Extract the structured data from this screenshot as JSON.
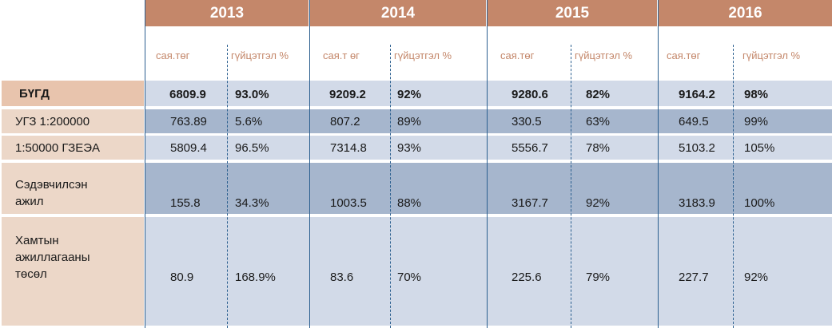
{
  "headers": {
    "years": [
      "2013",
      "2014",
      "2015",
      "2016"
    ],
    "amount_label": "сая.төг",
    "amount_label_2014": "сая.т өг",
    "percent_label": "гүйцэтгэл %"
  },
  "rows": [
    {
      "label": "БҮГД",
      "values": [
        "6809.9",
        "93.0%",
        "9209.2",
        "92%",
        "9280.6",
        "82%",
        "9164.2",
        "98%"
      ]
    },
    {
      "label": "УГЗ 1:200000",
      "values": [
        "763.89",
        "5.6%",
        "807.2",
        "89%",
        "330.5",
        "63%",
        "649.5",
        "99%"
      ]
    },
    {
      "label": "1:50000 ГЗЕЭА",
      "values": [
        "5809.4",
        "96.5%",
        "7314.8",
        "93%",
        "5556.7",
        "78%",
        "5103.2",
        "105%"
      ]
    },
    {
      "label": "Сэдэвчилсэн ажил",
      "values": [
        "155.8",
        "34.3%",
        "1003.5",
        "88%",
        "3167.7",
        "92%",
        "3183.9",
        "100%"
      ]
    },
    {
      "label": "Хамтын ажиллагааны төсөл",
      "values": [
        "80.9",
        "168.9%",
        "83.6",
        "70%",
        "225.6",
        "79%",
        "227.7",
        "92%"
      ]
    }
  ],
  "colors": {
    "header": "#c4876a",
    "label_bg": "#ecd7c8",
    "label_bg_first": "#e8c4ad",
    "row_light": "#d2dae8",
    "row_dark": "#a6b6cd",
    "divider": "#2b5f8f"
  }
}
